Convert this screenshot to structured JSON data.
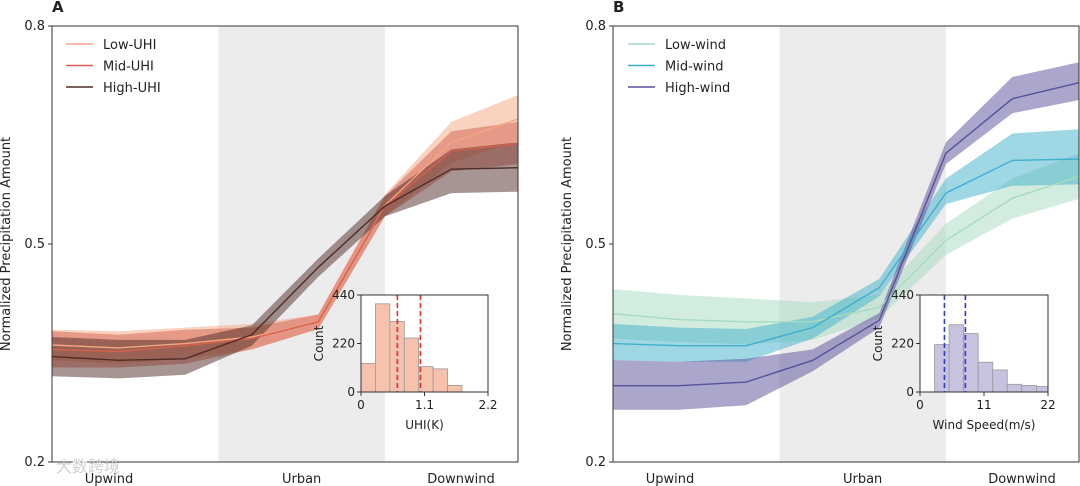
{
  "watermark": "大数跨境",
  "chart_data": [
    {
      "type": "line",
      "panel": "A",
      "ylabel": "Normalized Precipitation Amount",
      "ylim": [
        0.2,
        0.8
      ],
      "yticks": [
        "0.2",
        "0.5",
        "0.8"
      ],
      "x": [
        0,
        1,
        2,
        3,
        4,
        5,
        6,
        7
      ],
      "zones": [
        {
          "label": "Upwind",
          "range": [
            0,
            2.5
          ],
          "shaded": false
        },
        {
          "label": "Urban",
          "range": [
            2.5,
            5
          ],
          "shaded": true
        },
        {
          "label": "Downwind",
          "range": [
            5,
            7
          ],
          "shaded": false
        }
      ],
      "legend_position": "top-left",
      "series": [
        {
          "name": "Low-UHI",
          "color": "#f4a582",
          "values": [
            0.361,
            0.357,
            0.363,
            0.372,
            0.393,
            0.553,
            0.64,
            0.672
          ],
          "lower": [
            0.34,
            0.335,
            0.342,
            0.355,
            0.383,
            0.538,
            0.612,
            0.642
          ],
          "upper": [
            0.382,
            0.38,
            0.385,
            0.39,
            0.403,
            0.568,
            0.668,
            0.705
          ]
        },
        {
          "name": "Mid-UHI",
          "color": "#d6604d",
          "values": [
            0.355,
            0.352,
            0.36,
            0.37,
            0.393,
            0.552,
            0.628,
            0.638
          ],
          "lower": [
            0.33,
            0.33,
            0.335,
            0.355,
            0.383,
            0.538,
            0.6,
            0.61
          ],
          "upper": [
            0.38,
            0.375,
            0.382,
            0.385,
            0.403,
            0.566,
            0.655,
            0.668
          ]
        },
        {
          "name": "High-UHI",
          "color": "#4d2c26",
          "values": [
            0.345,
            0.34,
            0.342,
            0.375,
            0.468,
            0.552,
            0.603,
            0.605
          ],
          "lower": [
            0.318,
            0.315,
            0.32,
            0.36,
            0.455,
            0.538,
            0.57,
            0.572
          ],
          "upper": [
            0.372,
            0.368,
            0.368,
            0.388,
            0.48,
            0.566,
            0.63,
            0.64
          ]
        }
      ],
      "inset": {
        "type": "histogram",
        "xlabel": "UHI(K)",
        "ylabel": "Count",
        "xlim": [
          0,
          2.2
        ],
        "ylim": [
          0,
          440
        ],
        "xticks": [
          "0",
          "1.1",
          "2.2"
        ],
        "yticks": [
          "0",
          "220",
          "440"
        ],
        "bin_edges": [
          0,
          0.25,
          0.5,
          0.75,
          1.0,
          1.25,
          1.5,
          1.75,
          2.0
        ],
        "counts": [
          130,
          400,
          320,
          245,
          115,
          105,
          30,
          0
        ],
        "bar_color": "#f6c2ad",
        "vlines": [
          0.63,
          1.03
        ],
        "vline_color": "#e0302a"
      }
    },
    {
      "type": "line",
      "panel": "B",
      "ylabel": "Normalized Precipitation Amount",
      "ylim": [
        0.2,
        0.8
      ],
      "yticks": [
        "0.2",
        "0.5",
        "0.8"
      ],
      "x": [
        0,
        1,
        2,
        3,
        4,
        5,
        6,
        7
      ],
      "zones": [
        {
          "label": "Upwind",
          "range": [
            0,
            2.5
          ],
          "shaded": false
        },
        {
          "label": "Urban",
          "range": [
            2.5,
            5
          ],
          "shaded": true
        },
        {
          "label": "Downwind",
          "range": [
            5,
            7
          ],
          "shaded": false
        }
      ],
      "legend_position": "top-left",
      "series": [
        {
          "name": "Low-wind",
          "color": "#a6dbc0",
          "values": [
            0.404,
            0.396,
            0.393,
            0.393,
            0.413,
            0.505,
            0.563,
            0.593
          ],
          "lower": [
            0.37,
            0.365,
            0.362,
            0.368,
            0.398,
            0.485,
            0.535,
            0.562
          ],
          "upper": [
            0.438,
            0.43,
            0.425,
            0.42,
            0.43,
            0.528,
            0.59,
            0.625
          ]
        },
        {
          "name": "Mid-wind",
          "color": "#3fb0cc",
          "values": [
            0.363,
            0.36,
            0.36,
            0.385,
            0.44,
            0.57,
            0.615,
            0.617
          ],
          "lower": [
            0.34,
            0.338,
            0.338,
            0.37,
            0.428,
            0.555,
            0.58,
            0.582
          ],
          "upper": [
            0.39,
            0.385,
            0.383,
            0.4,
            0.452,
            0.59,
            0.652,
            0.658
          ]
        },
        {
          "name": "High-wind",
          "color": "#57509a",
          "values": [
            0.305,
            0.305,
            0.31,
            0.34,
            0.395,
            0.625,
            0.7,
            0.722
          ],
          "lower": [
            0.272,
            0.272,
            0.278,
            0.325,
            0.385,
            0.61,
            0.68,
            0.698
          ],
          "upper": [
            0.34,
            0.338,
            0.342,
            0.355,
            0.405,
            0.64,
            0.73,
            0.75
          ]
        }
      ],
      "inset": {
        "type": "histogram",
        "xlabel": "Wind Speed(m/s)",
        "ylabel": "Count",
        "xlim": [
          0,
          22
        ],
        "ylim": [
          0,
          440
        ],
        "xticks": [
          "0",
          "11",
          "22"
        ],
        "yticks": [
          "0",
          "220",
          "440"
        ],
        "bin_edges": [
          0,
          2.5,
          5,
          7.5,
          10,
          12.5,
          15,
          17.5,
          20,
          22
        ],
        "counts": [
          0,
          215,
          305,
          265,
          135,
          100,
          35,
          30,
          25
        ],
        "bar_color": "#c6c2e0",
        "vlines": [
          4.2,
          7.8
        ],
        "vline_color": "#2a3cc8"
      }
    }
  ]
}
